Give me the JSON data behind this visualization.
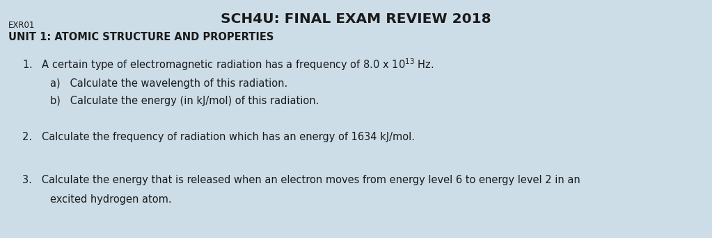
{
  "title": "SCH4U: FINAL EXAM REVIEW 2018",
  "label_exr": "EXR01",
  "label_unit": "UNIT 1: ATOMIC STRUCTURE AND PROPERTIES",
  "q1_text": "A certain type of electromagnetic radiation has a frequency of 8.0 x 10$^{13}$ Hz.",
  "q1a": "a)   Calculate the wavelength of this radiation.",
  "q1b": "b)   Calculate the energy (in kJ/mol) of this radiation.",
  "q2": "Calculate the frequency of radiation which has an energy of 1634 kJ/mol.",
  "q3_line1": "Calculate the energy that is released when an electron moves from energy level 6 to energy level 2 in an",
  "q3_line2": "excited hydrogen atom.",
  "bg_color": "#ccdde8",
  "text_color": "#1a1a1a",
  "title_fontsize": 14.5,
  "label_exr_fontsize": 8.5,
  "unit_fontsize": 10.5,
  "body_fontsize": 10.5,
  "sub_fontsize": 10.5
}
